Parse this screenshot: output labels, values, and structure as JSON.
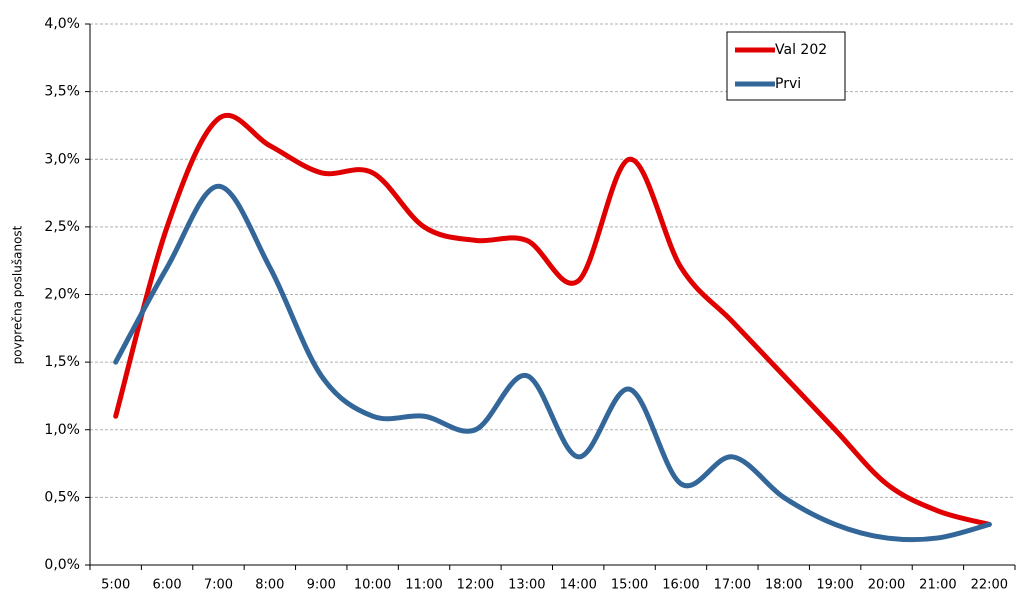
{
  "chart_data": {
    "type": "line",
    "y_label": "povprečna poslušanost",
    "categories": [
      "5:00",
      "6:00",
      "7:00",
      "8:00",
      "9:00",
      "10:00",
      "11:00",
      "12:00",
      "13:00",
      "14:00",
      "15:00",
      "16:00",
      "17:00",
      "18:00",
      "19:00",
      "20:00",
      "21:00",
      "22:00"
    ],
    "series": [
      {
        "name": "Val 202",
        "color": "#e00000",
        "values": [
          1.1,
          2.5,
          3.3,
          3.1,
          2.9,
          2.9,
          2.5,
          2.4,
          2.4,
          2.1,
          3.0,
          2.2,
          1.8,
          1.4,
          1.0,
          0.6,
          0.4,
          0.3
        ]
      },
      {
        "name": "Prvi",
        "color": "#336699",
        "values": [
          1.5,
          2.2,
          2.8,
          2.2,
          1.4,
          1.1,
          1.1,
          1.0,
          1.4,
          0.8,
          1.3,
          0.6,
          0.8,
          0.5,
          0.3,
          0.2,
          0.2,
          0.3
        ]
      }
    ],
    "ylim": [
      0,
      4
    ],
    "yticks": [
      {
        "value": 0,
        "label": "0,0%"
      },
      {
        "value": 0.5,
        "label": "0,5%"
      },
      {
        "value": 1,
        "label": "1,0%"
      },
      {
        "value": 1.5,
        "label": "1,5%"
      },
      {
        "value": 2,
        "label": "2,0%"
      },
      {
        "value": 2.5,
        "label": "2,5%"
      },
      {
        "value": 3,
        "label": "3,0%"
      },
      {
        "value": 3.5,
        "label": "3,5%"
      },
      {
        "value": 4,
        "label": "4,0%"
      }
    ],
    "grid": true,
    "legend": "top-right"
  }
}
